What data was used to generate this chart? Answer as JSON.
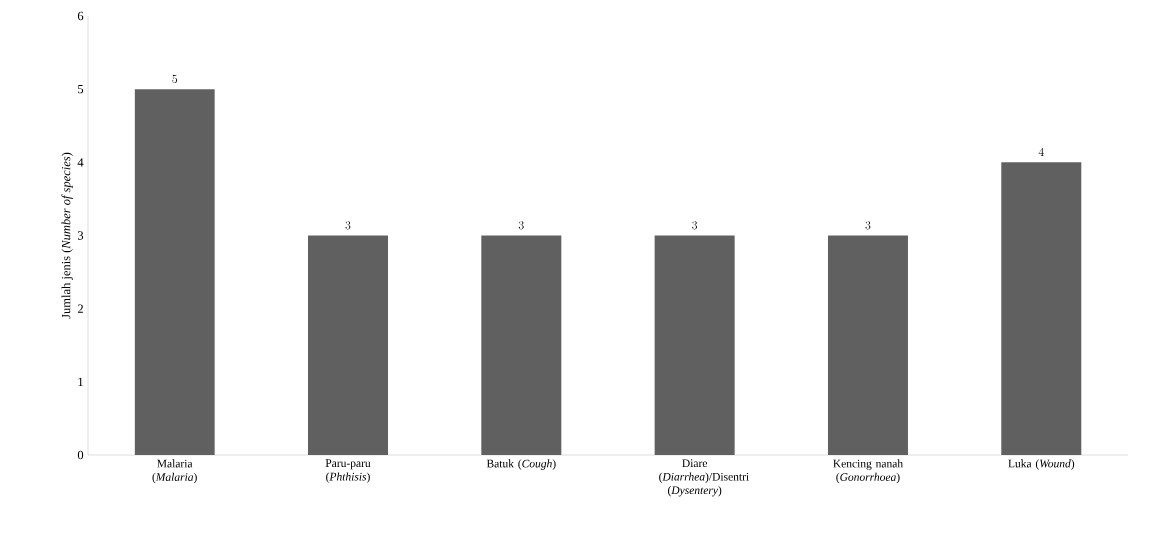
{
  "chart_data": {
    "type": "bar",
    "ylabel": "Jumlah jenis (*Number of species*)",
    "categories": [
      "Malaria (*Malaria*)",
      "Paru-paru (*Phthisis*)",
      "Batuk (*Cough*)",
      "Diare (*Diarrhea*)/Disentri (*Dysentery*)",
      "Kencing nanah (*Gonorrhoea*)",
      "Luka (*Wound*)"
    ],
    "values": [
      5,
      3,
      3,
      3,
      3,
      4
    ],
    "color": "#606060",
    "ylim": [
      0,
      6
    ],
    "yticks": [
      0,
      1,
      2,
      3,
      4,
      5,
      6
    ],
    "data_labels": true,
    "grid": false
  }
}
